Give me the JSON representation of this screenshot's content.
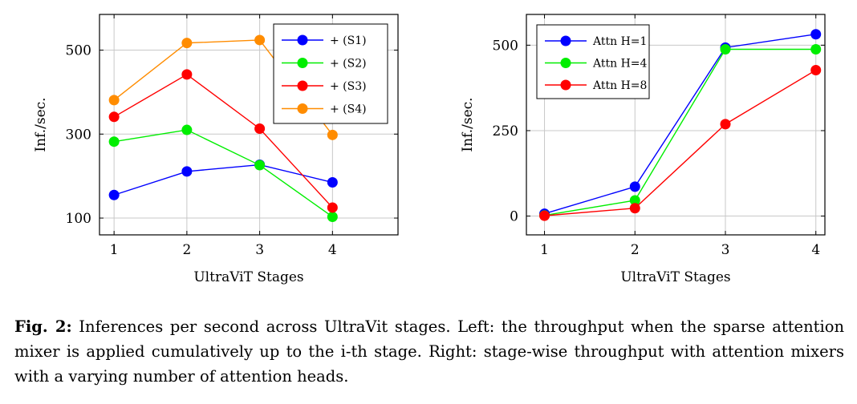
{
  "chart_data": [
    {
      "type": "line",
      "xlabel": "UltraViT Stages",
      "ylabel": "Inf./sec.",
      "x": [
        1,
        2,
        3,
        4
      ],
      "xticks": [
        1,
        2,
        3,
        4
      ],
      "yticks": [
        100,
        300,
        500
      ],
      "xlim": [
        0.8,
        4.9
      ],
      "ylim": [
        60,
        585
      ],
      "grid": true,
      "legend_position": "top-right",
      "series": [
        {
          "name": "+ (S1)",
          "color": "#0000ff",
          "values": [
            155,
            211,
            227,
            185
          ]
        },
        {
          "name": "+ (S2)",
          "color": "#00ee00",
          "values": [
            282,
            310,
            226,
            103
          ]
        },
        {
          "name": "+ (S3)",
          "color": "#ff0000",
          "values": [
            341,
            442,
            313,
            125
          ]
        },
        {
          "name": "+ (S4)",
          "color": "#ff8c00",
          "values": [
            381,
            517,
            524,
            298
          ]
        }
      ]
    },
    {
      "type": "line",
      "xlabel": "UltraViT Stages",
      "ylabel": "Inf./sec.",
      "x": [
        1,
        2,
        3,
        4
      ],
      "xticks": [
        1,
        2,
        3,
        4
      ],
      "yticks": [
        0,
        250,
        500
      ],
      "xlim": [
        0.8,
        4.1
      ],
      "ylim": [
        -55,
        590
      ],
      "grid": true,
      "legend_position": "top-left",
      "series": [
        {
          "name": "Attn H=1",
          "color": "#0000ff",
          "values": [
            7,
            86,
            493,
            532
          ]
        },
        {
          "name": "Attn H=4",
          "color": "#00ee00",
          "values": [
            2,
            46,
            488,
            488
          ]
        },
        {
          "name": "Attn H=8",
          "color": "#ff0000",
          "values": [
            1,
            23,
            269,
            427
          ]
        }
      ]
    }
  ],
  "caption": {
    "label": "Fig. 2:",
    "text": " Inferences per second across UltraVit stages. Left: the throughput when the sparse attention mixer is applied cumulatively up to the i-th stage. Right: stage-wise throughput with attention mixers with a varying number of attention heads."
  }
}
